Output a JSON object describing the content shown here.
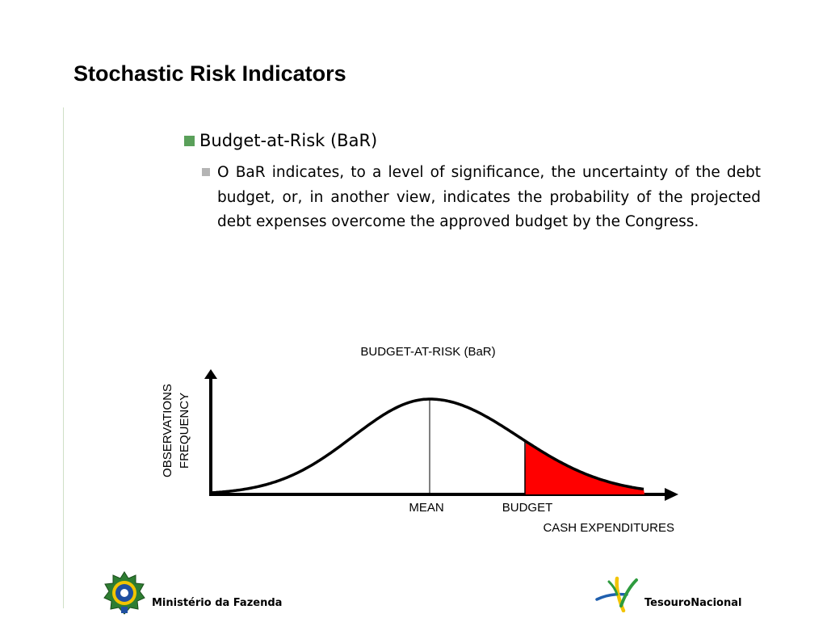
{
  "slide": {
    "title": "Stochastic Risk Indicators",
    "bullet_1": "Budget-at-Risk (BaR)",
    "bullet_2": "O BaR indicates, to a level of significance, the uncertainty of the debt budget, or, in another view, indicates the probability of the projected debt expenses overcome the approved budget by the Congress."
  },
  "chart_data": {
    "type": "area",
    "title": "BUDGET-AT-RISK (BaR)",
    "ylabel_line1": "OBSERVATIONS",
    "ylabel_line2": "FREQUENCY",
    "xlabel": "CASH EXPENDITURES",
    "markers": {
      "mean": "MEAN",
      "budget": "BUDGET"
    },
    "highlight_color": "#ff0000"
  },
  "footer": {
    "left_label": "Ministério da Fazenda",
    "right_label": "TesouroNacional",
    "left_icon": "coat-of-arms-icon",
    "right_icon": "tesouro-logo-icon"
  },
  "colors": {
    "bullet_1": "#5aa05a",
    "bullet_2": "#b4b4b4",
    "divider": "#cfe0c6"
  }
}
